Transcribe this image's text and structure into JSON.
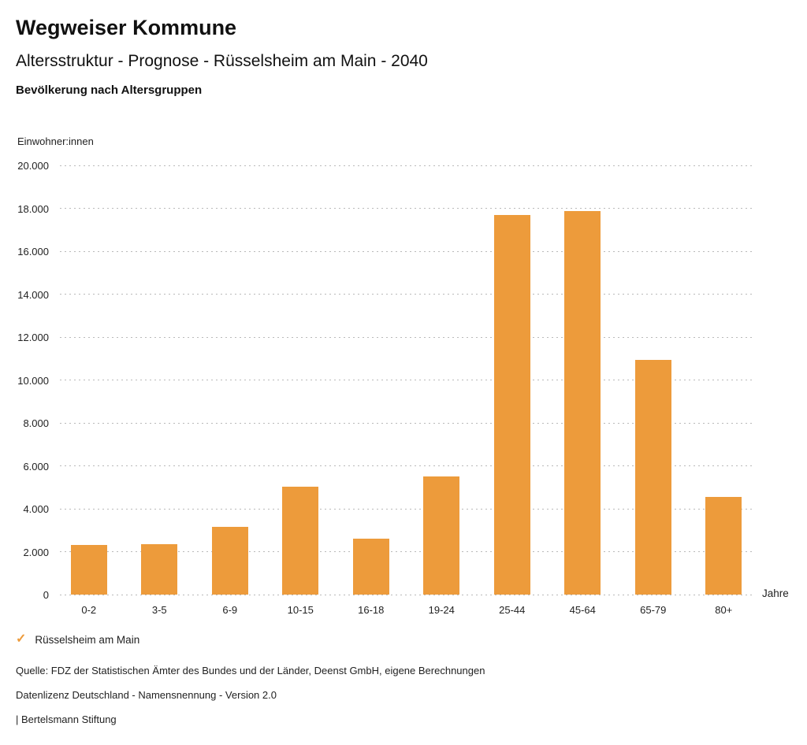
{
  "header": {
    "brand": "Wegweiser Kommune",
    "title": "Altersstruktur - Prognose - Rüsselsheim am Main - 2040",
    "subtitle": "Bevölkerung nach Altersgruppen"
  },
  "chart_data": {
    "type": "bar",
    "categories": [
      "0-2",
      "3-5",
      "6-9",
      "10-15",
      "16-18",
      "19-24",
      "25-44",
      "45-64",
      "65-79",
      "80+"
    ],
    "values": [
      2300,
      2350,
      3160,
      5040,
      2610,
      5520,
      17690,
      17880,
      10930,
      4550
    ],
    "series": [
      {
        "name": "Rüsselsheim am Main",
        "values": [
          2300,
          2350,
          3160,
          5040,
          2610,
          5520,
          17690,
          17880,
          10930,
          4550
        ]
      }
    ],
    "title": "Bevölkerung nach Altersgruppen",
    "xlabel": "Jahre",
    "ylabel": "Einwohner:innen",
    "ylim": [
      0,
      20000
    ],
    "ytick_step": 2000,
    "ytick_labels": [
      "0",
      "2.000",
      "4.000",
      "6.000",
      "8.000",
      "10.000",
      "12.000",
      "14.000",
      "16.000",
      "18.000",
      "20.000"
    ],
    "grid": true,
    "gridline_style": "dotted",
    "legend_position": "bottom-left",
    "bar_color": "#ED9B3B"
  },
  "legend": {
    "check": "✓",
    "label": "Rüsselsheim am Main"
  },
  "footer": {
    "source": "Quelle: FDZ der Statistischen Ämter des Bundes und der Länder, Deenst GmbH, eigene Berechnungen",
    "license": "Datenlizenz Deutschland - Namensnennung - Version 2.0",
    "attribution": "| Bertelsmann Stiftung"
  },
  "colors": {
    "accent_orange": "#ED9B3B",
    "text": "#1a1a1a",
    "gridline": "#b9b9b9"
  }
}
